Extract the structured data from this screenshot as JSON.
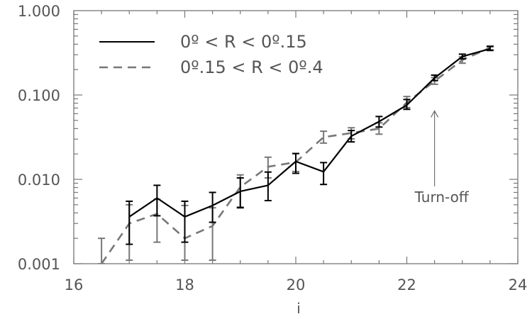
{
  "chart_data": {
    "type": "line",
    "xlabel": "i",
    "ylabel": "",
    "xlim": [
      16,
      24
    ],
    "ylim": [
      0.001,
      1.0
    ],
    "yscale": "log",
    "x_ticks": [
      "16",
      "18",
      "20",
      "22",
      "24"
    ],
    "y_ticks": [
      "0.001",
      "0.010",
      "0.100",
      "1.000"
    ],
    "legend_position": "top-left",
    "series": [
      {
        "name": "0º < R < 0º.15",
        "style": "solid",
        "color": "#000000",
        "x": [
          17.0,
          17.5,
          18.0,
          18.5,
          19.0,
          19.5,
          20.0,
          20.5,
          21.0,
          21.5,
          22.0,
          22.5,
          23.0,
          23.5
        ],
        "y": [
          0.0036,
          0.006,
          0.0036,
          0.0049,
          0.0072,
          0.0085,
          0.0163,
          0.0123,
          0.0325,
          0.0484,
          0.0759,
          0.159,
          0.286,
          0.353
        ],
        "err_low": [
          0.0017,
          0.0037,
          0.0018,
          0.0031,
          0.0046,
          0.0056,
          0.0118,
          0.0087,
          0.0278,
          0.0417,
          0.0676,
          0.148,
          0.268,
          0.337
        ],
        "err_high": [
          0.0055,
          0.0085,
          0.0055,
          0.007,
          0.0104,
          0.0122,
          0.0202,
          0.0158,
          0.0379,
          0.0556,
          0.0885,
          0.172,
          0.305,
          0.375
        ]
      },
      {
        "name": "0º.15 < R < 0º.4",
        "style": "dashed",
        "color": "#777777",
        "x": [
          16.5,
          17.0,
          17.5,
          18.0,
          18.5,
          19.0,
          19.5,
          20.0,
          20.5,
          21.0,
          21.5,
          22.0,
          22.5,
          23.0,
          23.5
        ],
        "y": [
          0.001,
          0.003,
          0.0039,
          0.002,
          0.0028,
          0.0081,
          0.0141,
          0.016,
          0.0316,
          0.0354,
          0.0399,
          0.0813,
          0.146,
          0.26,
          0.363
        ],
        "err_low": [
          0.001,
          0.0011,
          0.0018,
          0.0011,
          0.0011,
          0.0047,
          0.0104,
          0.0124,
          0.0269,
          0.0302,
          0.0343,
          0.0708,
          0.134,
          0.238,
          0.344
        ],
        "err_high": [
          0.002,
          0.005,
          0.0058,
          0.0049,
          0.0046,
          0.0113,
          0.0183,
          0.0203,
          0.0372,
          0.0409,
          0.0468,
          0.0959,
          0.161,
          0.283,
          0.382
        ]
      }
    ],
    "annotations": [
      {
        "text": "Turn-off",
        "x": 22.5,
        "y": 0.0054,
        "arrow_to_y": 0.07
      }
    ]
  }
}
